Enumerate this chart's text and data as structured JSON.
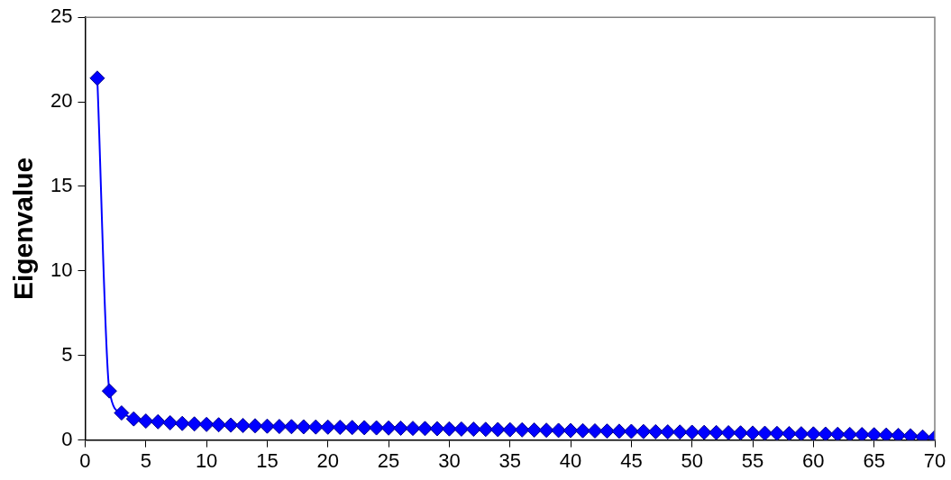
{
  "chart_data": {
    "type": "line",
    "ylabel": "Eigenvalue",
    "x": [
      1,
      2,
      3,
      4,
      5,
      6,
      7,
      8,
      9,
      10,
      11,
      12,
      13,
      14,
      15,
      16,
      17,
      18,
      19,
      20,
      21,
      22,
      23,
      24,
      25,
      26,
      27,
      28,
      29,
      30,
      31,
      32,
      33,
      34,
      35,
      36,
      37,
      38,
      39,
      40,
      41,
      42,
      43,
      44,
      45,
      46,
      47,
      48,
      49,
      50,
      51,
      52,
      53,
      54,
      55,
      56,
      57,
      58,
      59,
      60,
      61,
      62,
      63,
      64,
      65,
      66,
      67,
      68,
      69,
      70
    ],
    "series": [
      {
        "color": "#0000ff",
        "values": [
          21.4,
          2.9,
          1.6,
          1.25,
          1.12,
          1.08,
          1.02,
          0.98,
          0.95,
          0.92,
          0.9,
          0.88,
          0.86,
          0.84,
          0.82,
          0.8,
          0.79,
          0.78,
          0.77,
          0.76,
          0.75,
          0.74,
          0.73,
          0.72,
          0.71,
          0.7,
          0.69,
          0.68,
          0.67,
          0.66,
          0.65,
          0.64,
          0.63,
          0.62,
          0.61,
          0.6,
          0.59,
          0.58,
          0.57,
          0.56,
          0.55,
          0.54,
          0.53,
          0.52,
          0.51,
          0.5,
          0.49,
          0.48,
          0.47,
          0.46,
          0.45,
          0.44,
          0.43,
          0.42,
          0.41,
          0.4,
          0.39,
          0.38,
          0.37,
          0.36,
          0.35,
          0.34,
          0.33,
          0.32,
          0.31,
          0.29,
          0.27,
          0.25,
          0.18,
          0.15
        ]
      }
    ],
    "xlim": [
      0,
      70
    ],
    "xticks": [
      0,
      5,
      10,
      15,
      20,
      25,
      30,
      35,
      40,
      45,
      50,
      55,
      60,
      65,
      70
    ],
    "ylim": [
      0,
      25
    ],
    "yticks": [
      0,
      5,
      10,
      15,
      20,
      25
    ],
    "grid": false,
    "legend": false,
    "marker": "diamond",
    "line_style": "solid"
  }
}
